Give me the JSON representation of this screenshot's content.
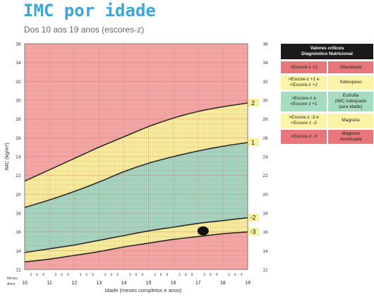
{
  "header": {
    "title": "IMC por idade",
    "subtitle": "Dos 10 aos 19 anos (escores-z)"
  },
  "legend": {
    "title": "Valores críticos\nDiagnóstico Nutricional",
    "rows": [
      {
        "criterion": "<Escore-z +2",
        "diagnosis": "Obesidade",
        "color": "#e8767a"
      },
      {
        "criterion": ">Escore-z +1 e\n<Escore-z +2",
        "diagnosis": "Sobrepeso",
        "color": "#fbf4a6"
      },
      {
        "criterion": ">Escore-z e\n<Escore z +1",
        "diagnosis": "Eutrofia\n(IMC Adequado\npara idade)",
        "color": "#a6dcc0"
      },
      {
        "criterion": ">Escore-z -3 e\n<Escore z -2",
        "diagnosis": "Magreza",
        "color": "#fbf4a6"
      },
      {
        "criterion": "<Escore-z -3",
        "diagnosis": "Magreza\nAcentuada",
        "color": "#e8767a"
      }
    ]
  },
  "colors": {
    "red_zone": "#f4a9a9",
    "yellow_zone": "#f7f0a0",
    "green_zone": "#a3d8c4",
    "curve": "#2b2b2b",
    "marker": "#111111"
  },
  "chart_data": {
    "type": "line",
    "xlabel": "Idade (meses completos e anos)",
    "ylabel": "IMC (kg/m²)",
    "x_axis_title_left": "Meses\nAnos",
    "xlim": [
      10,
      19
    ],
    "ylim": [
      12,
      36
    ],
    "y_ticks": [
      12,
      14,
      16,
      18,
      20,
      22,
      24,
      26,
      28,
      30,
      32,
      34,
      36
    ],
    "x_ticks": [
      10,
      11,
      12,
      13,
      14,
      15,
      16,
      17,
      18,
      19
    ],
    "month_ticks": [
      "3",
      "6",
      "9"
    ],
    "series": [
      {
        "name": "2",
        "x": [
          10,
          11,
          12,
          13,
          14,
          15,
          16,
          17,
          18,
          19
        ],
        "values": [
          21.4,
          22.6,
          23.8,
          25.0,
          26.1,
          27.2,
          28.1,
          28.8,
          29.3,
          29.7
        ]
      },
      {
        "name": "1",
        "x": [
          10,
          11,
          12,
          13,
          14,
          15,
          16,
          17,
          18,
          19
        ],
        "values": [
          18.6,
          19.4,
          20.3,
          21.3,
          22.4,
          23.3,
          24.0,
          24.6,
          25.1,
          25.5
        ]
      },
      {
        "name": "-2",
        "x": [
          10,
          11,
          12,
          13,
          14,
          15,
          16,
          17,
          18,
          19
        ],
        "values": [
          13.8,
          14.2,
          14.6,
          15.1,
          15.6,
          16.1,
          16.5,
          16.9,
          17.2,
          17.5
        ]
      },
      {
        "name": "-3",
        "x": [
          10,
          11,
          12,
          13,
          14,
          15,
          16,
          17,
          18,
          19
        ],
        "values": [
          12.8,
          13.1,
          13.5,
          13.9,
          14.4,
          14.8,
          15.2,
          15.5,
          15.8,
          16.0
        ]
      }
    ],
    "point": {
      "x": 17.2,
      "y": 16.1
    },
    "grid": true
  }
}
